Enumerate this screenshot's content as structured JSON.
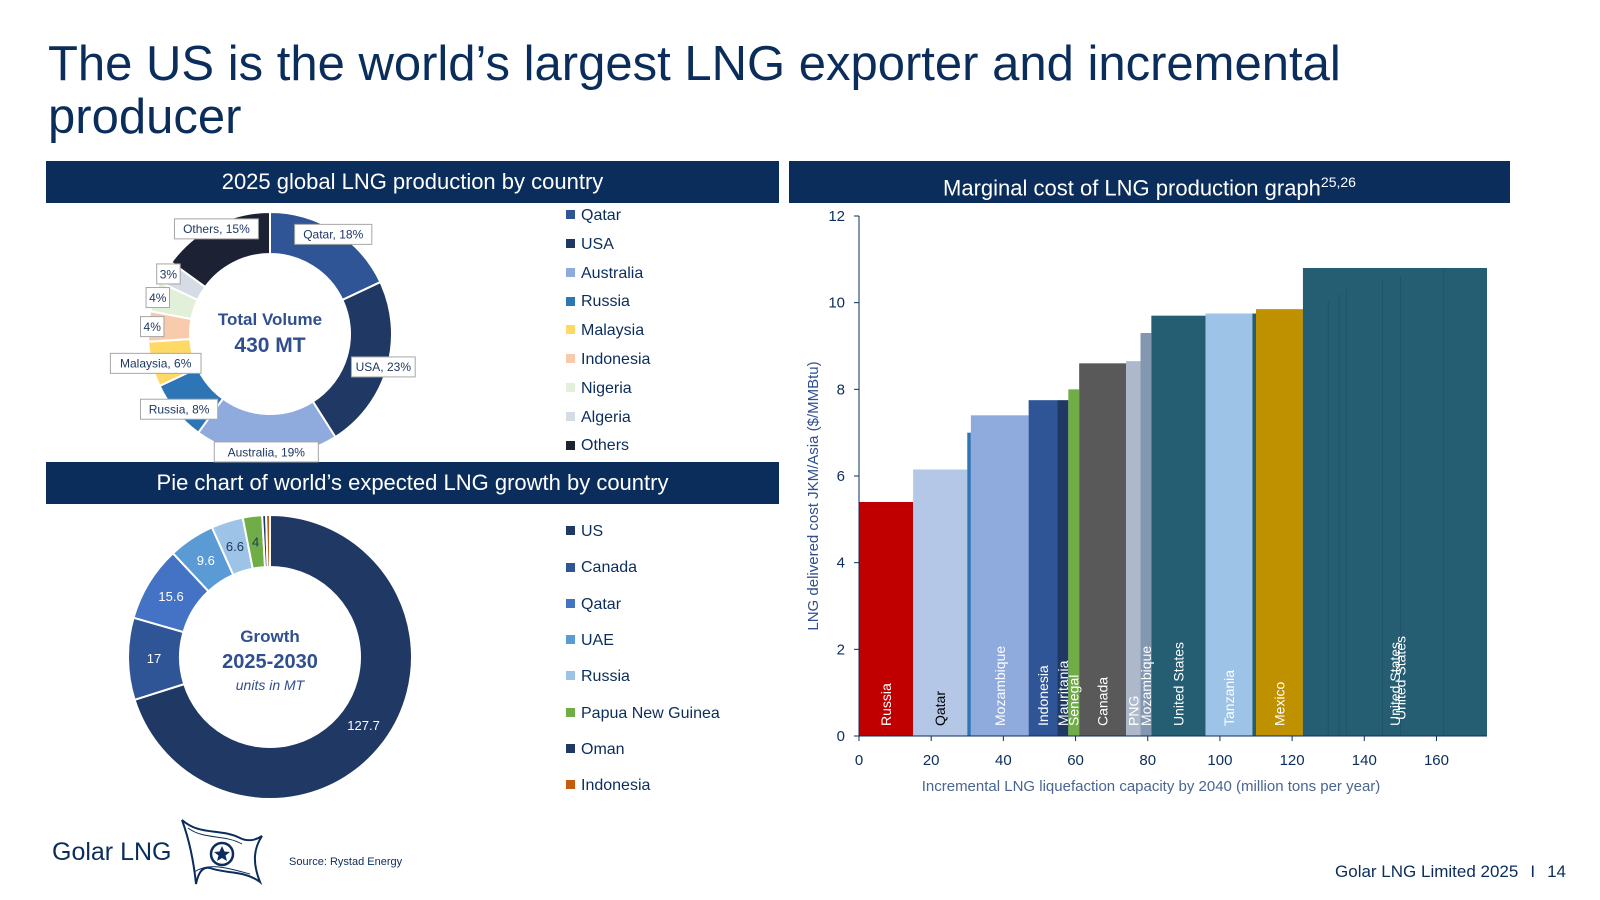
{
  "title": "The US is the world’s largest LNG exporter and incremental producer",
  "donut1_header": "2025 global LNG production by country",
  "donut2_header": "Pie chart of world’s expected LNG growth by country",
  "marginal_header": {
    "text": "Marginal cost of LNG production graph",
    "sup": "25,26"
  },
  "donut1_center": {
    "line1": "Total Volume",
    "line2": "430 MT"
  },
  "donut2_center": {
    "line1": "Growth",
    "line2": "2025-2030",
    "line3": "units in MT"
  },
  "source": "Source: Rystad Energy",
  "logo_text": "Golar LNG",
  "footer": {
    "company": "Golar LNG Limited 2025",
    "separator": "I",
    "page": "14"
  },
  "chart_data": [
    {
      "type": "pie",
      "title": "2025 global LNG production by country",
      "center_label": "Total Volume 430 MT",
      "categories": [
        "Qatar",
        "USA",
        "Australia",
        "Russia",
        "Malaysia",
        "Indonesia",
        "Nigeria",
        "Algeria",
        "Others"
      ],
      "values": [
        18,
        23,
        19,
        8,
        6,
        4,
        4,
        3,
        15
      ],
      "unit": "%",
      "data_labels": [
        "Qatar, 18%",
        "USA, 23%",
        "Australia, 19%",
        "Russia, 8%",
        "Malaysia, 6%",
        "4%",
        "4%",
        "3%",
        "Others, 15%"
      ],
      "colors": [
        "#2f5597",
        "#203864",
        "#8faadc",
        "#2e75b6",
        "#ffd966",
        "#f8cbad",
        "#e2f0d9",
        "#d6dce5",
        "#1c2233"
      ],
      "legend_position": "right"
    },
    {
      "type": "pie",
      "title": "Pie chart of world’s expected LNG growth by country",
      "center_label": "Growth 2025-2030 units in MT",
      "categories": [
        "US",
        "Canada",
        "Qatar",
        "UAE",
        "Russia",
        "Papua New Guinea",
        "Oman",
        "Indonesia"
      ],
      "values": [
        127.7,
        17,
        15.6,
        9.6,
        6.6,
        4,
        0.8,
        0.8
      ],
      "data_labels": [
        "127.7",
        "17",
        "15.6",
        "9.6",
        "6.6",
        "4",
        "",
        ""
      ],
      "colors": [
        "#203864",
        "#2f5597",
        "#4472c4",
        "#5b9bd5",
        "#9dc3e6",
        "#70ad47",
        "#1f3864",
        "#c55a11"
      ],
      "legend_position": "right"
    },
    {
      "type": "bar",
      "subtype": "cost-curve",
      "title": "Marginal cost of LNG production graph",
      "xlabel": "Incremental LNG liquefaction capacity by 2040 (million tons per year)",
      "ylabel": "LNG delivered cost JKM/Asia ($/MMBtu)",
      "xlim": [
        0,
        174
      ],
      "ylim": [
        0,
        12
      ],
      "xticks": [
        0,
        20,
        40,
        60,
        80,
        100,
        120,
        140,
        160
      ],
      "yticks": [
        0,
        2,
        4,
        6,
        8,
        10,
        12
      ],
      "segments": [
        {
          "label": "Russia",
          "x0": 0,
          "x1": 15,
          "y": 5.4,
          "color": "#c00000",
          "text_color": "#ffffff"
        },
        {
          "label": "Qatar",
          "x0": 15,
          "x1": 30,
          "y": 6.15,
          "color": "#b4c7e7",
          "text_color": "#000000"
        },
        {
          "label": "",
          "x0": 30,
          "x1": 31,
          "y": 7.0,
          "color": "#2e75b6"
        },
        {
          "label": "Mozambique",
          "x0": 31,
          "x1": 47,
          "y": 7.4,
          "color": "#8faadc",
          "text_color": "#ffffff"
        },
        {
          "label": "Indonesia",
          "x0": 47,
          "x1": 55,
          "y": 7.75,
          "color": "#2f5597",
          "text_color": "#ffffff"
        },
        {
          "label": "Mauritania",
          "x0": 55,
          "x1": 58,
          "y": 7.75,
          "color": "#1f3864",
          "text_color": "#ffffff"
        },
        {
          "label": "Senegal",
          "x0": 58,
          "x1": 61,
          "y": 8.0,
          "color": "#70ad47",
          "text_color": "#ffffff"
        },
        {
          "label": "Canada",
          "x0": 61,
          "x1": 74,
          "y": 8.6,
          "color": "#595959",
          "text_color": "#ffffff"
        },
        {
          "label": "PNG",
          "x0": 74,
          "x1": 78,
          "y": 8.65,
          "color": "#adb9ca",
          "text_color": "#ffffff"
        },
        {
          "label": "Mozambique",
          "x0": 78,
          "x1": 81,
          "y": 9.3,
          "color": "#8497b0",
          "text_color": "#ffffff"
        },
        {
          "label": "United States",
          "x0": 81,
          "x1": 96,
          "y": 9.7,
          "color": "#255e73",
          "text_color": "#ffffff"
        },
        {
          "label": "Tanzania",
          "x0": 96,
          "x1": 109,
          "y": 9.75,
          "color": "#9dc3e6",
          "text_color": "#ffffff"
        },
        {
          "label": "",
          "x0": 109,
          "x1": 110,
          "y": 9.75,
          "color": "#255e73"
        },
        {
          "label": "Mexico",
          "x0": 110,
          "x1": 123,
          "y": 9.85,
          "color": "#bf9000",
          "text_color": "#ffffff"
        },
        {
          "label": "United States",
          "x0": 123,
          "x1": 174,
          "y": 10.8,
          "color": "#255e73",
          "text_color": "#ffffff"
        }
      ],
      "staircase": [
        [
          123,
          9.85
        ],
        [
          130,
          10.05
        ],
        [
          133,
          10.2
        ],
        [
          135,
          10.3
        ],
        [
          145,
          10.5
        ],
        [
          150,
          10.6
        ],
        [
          162,
          10.8
        ],
        [
          174,
          10.8
        ]
      ]
    }
  ]
}
